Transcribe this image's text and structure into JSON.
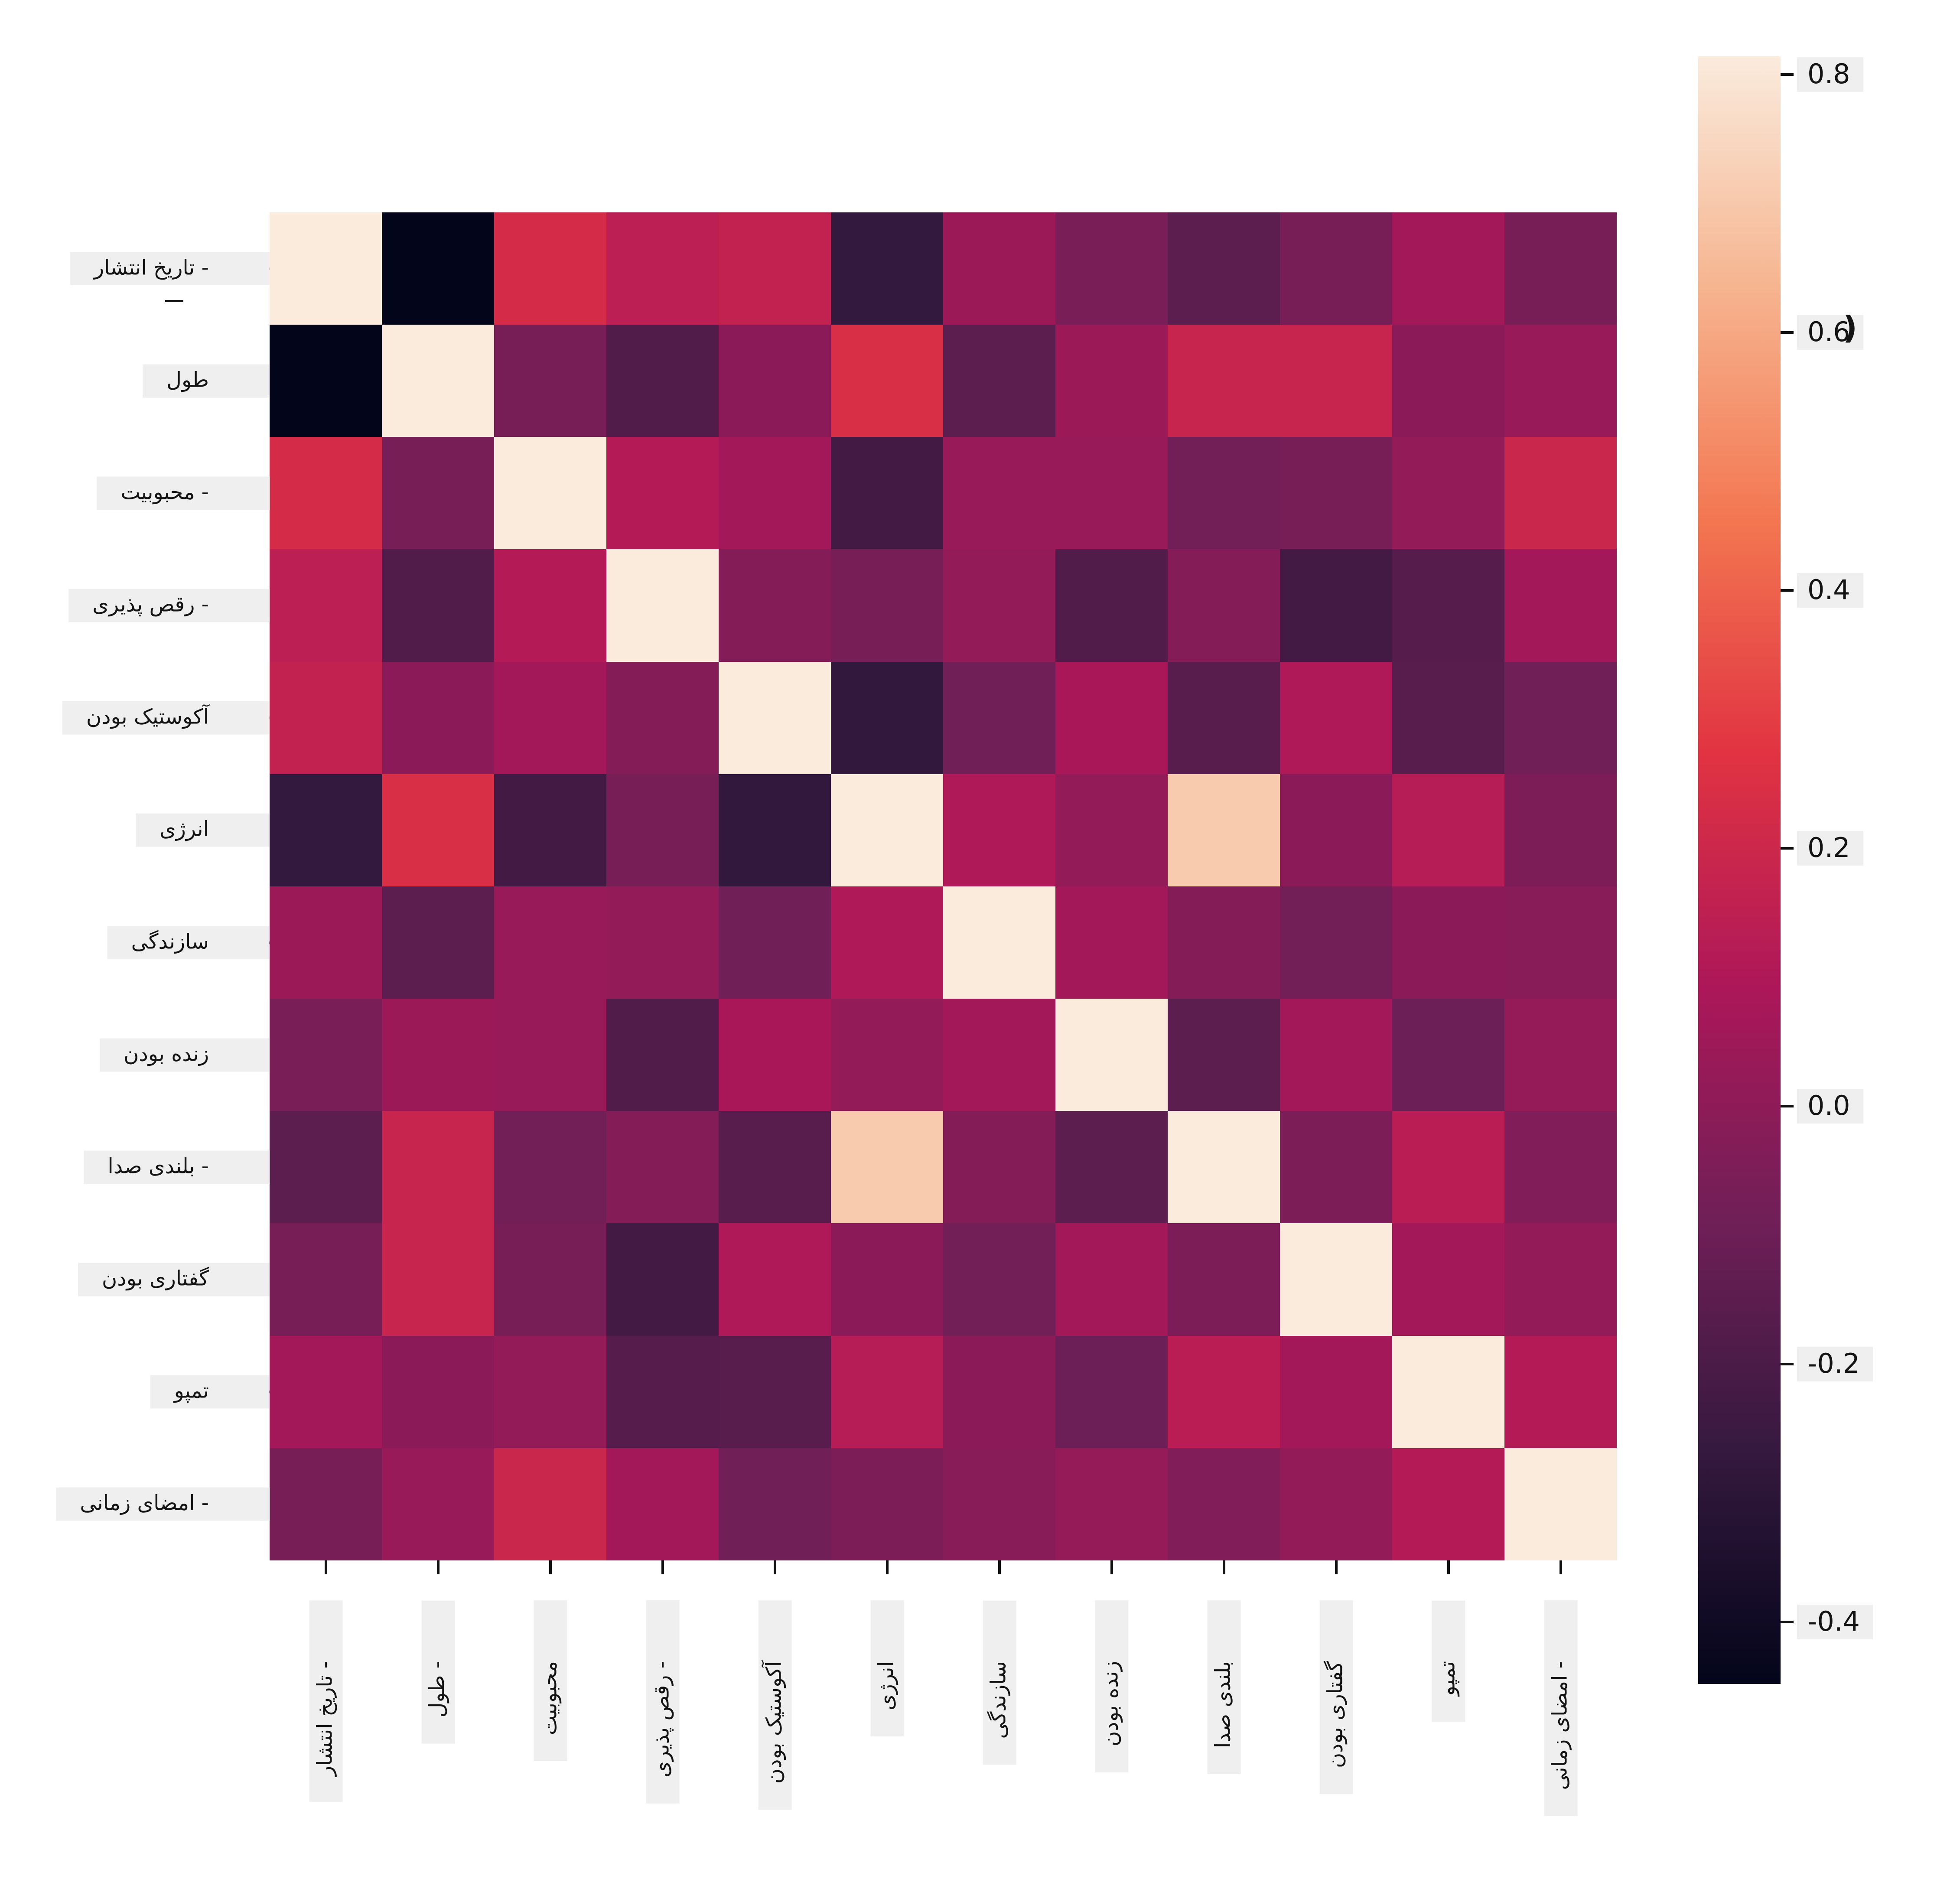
{
  "chart_data": {
    "type": "heatmap",
    "title": "",
    "xlabel": "",
    "ylabel": "",
    "categories": [
      "- تاریخ انتشار",
      "طول",
      "- محبوبیت",
      "- رقص پذیری",
      "آکوستیک بودن",
      "انرژی",
      "سازندگی",
      "زنده بودن",
      "- بلندی صدا",
      "گفتاری بودن",
      "تمپو",
      "- امضای زمانی"
    ],
    "x_categories": [
      "- تاریخ انتشار",
      "- طول",
      "محبوبیت",
      "- رقص پذیری",
      "آکوستیک بودن",
      "انرژی",
      "سازندگی",
      "زنده بودن",
      "بلندی صدا",
      "گفتاری بودن",
      "تمپو",
      "- امضای زمانی"
    ],
    "matrix": [
      [
        1.0,
        -0.5,
        0.22,
        0.14,
        0.16,
        -0.27,
        0.04,
        -0.06,
        -0.15,
        -0.07,
        0.06,
        -0.07
      ],
      [
        -0.5,
        1.0,
        -0.07,
        -0.18,
        -0.01,
        0.24,
        -0.15,
        0.04,
        0.18,
        0.18,
        -0.01,
        0.03
      ],
      [
        0.22,
        -0.07,
        1.0,
        0.11,
        0.06,
        -0.23,
        0.03,
        0.03,
        -0.08,
        -0.07,
        0.01,
        0.19
      ],
      [
        0.14,
        -0.18,
        0.11,
        1.0,
        -0.03,
        -0.07,
        0.01,
        -0.18,
        -0.03,
        -0.23,
        -0.17,
        0.06
      ],
      [
        0.16,
        -0.01,
        0.06,
        -0.03,
        1.0,
        -0.28,
        -0.09,
        0.08,
        -0.16,
        0.1,
        -0.16,
        -0.09
      ],
      [
        -0.27,
        0.24,
        -0.23,
        -0.07,
        -0.28,
        1.0,
        0.1,
        0.01,
        0.7,
        -0.01,
        0.12,
        -0.05
      ],
      [
        0.04,
        -0.15,
        0.03,
        0.01,
        -0.09,
        0.1,
        1.0,
        0.06,
        -0.03,
        -0.08,
        -0.01,
        -0.02
      ],
      [
        -0.06,
        0.04,
        0.03,
        -0.18,
        0.08,
        0.01,
        0.06,
        1.0,
        -0.15,
        0.06,
        -0.1,
        0.02
      ],
      [
        -0.15,
        0.18,
        -0.08,
        -0.03,
        -0.16,
        0.7,
        -0.03,
        -0.15,
        1.0,
        -0.05,
        0.13,
        -0.04
      ],
      [
        -0.07,
        0.18,
        -0.07,
        -0.23,
        0.1,
        -0.01,
        -0.08,
        0.06,
        -0.05,
        1.0,
        0.06,
        0.01
      ],
      [
        0.06,
        -0.01,
        0.01,
        -0.17,
        -0.16,
        0.12,
        -0.01,
        -0.1,
        0.13,
        0.06,
        1.0,
        0.11
      ],
      [
        -0.07,
        0.03,
        0.19,
        0.06,
        -0.09,
        -0.05,
        -0.02,
        0.02,
        -0.04,
        0.01,
        0.11,
        1.0
      ]
    ],
    "vmin": -0.447,
    "vmax": 0.805,
    "colormap": "rocket",
    "colormap_stops_dark_to_light": [
      "#03051A",
      "#35193E",
      "#701F57",
      "#AD1759",
      "#E13342",
      "#F37651",
      "#F6B48F",
      "#FAEBDD"
    ],
    "colorbar_ticks": [
      "0.8",
      "0.6",
      "0.4",
      "0.2",
      "0.0",
      "-0.2",
      "-0.4"
    ],
    "colorbar_tick_values": [
      0.8,
      0.6,
      0.4,
      0.2,
      0.0,
      -0.2,
      -0.4
    ],
    "legend_position": "right",
    "grid": "off"
  },
  "ui": {
    "background": "#ffffff",
    "label_box_color": "#efefef",
    "tick_color": "#111111",
    "colorbar_artifact_glyph": ")"
  }
}
